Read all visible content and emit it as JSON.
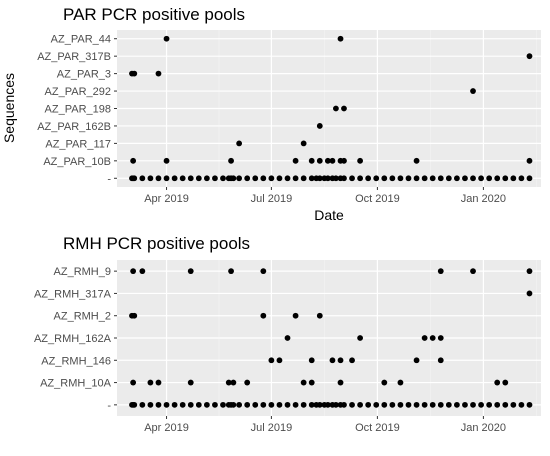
{
  "chart_data": [
    {
      "type": "scatter",
      "title": "PAR PCR positive pools",
      "xlabel": "Date",
      "ylabel": "Sequences",
      "x_ticks": [
        "Apr 2019",
        "Jul 2019",
        "Oct 2019",
        "Jan 2020"
      ],
      "x_tick_dates": [
        "2019-04-01",
        "2019-07-01",
        "2019-10-01",
        "2020-01-01"
      ],
      "xlim": [
        "2019-02-17",
        "2020-02-20"
      ],
      "categories": [
        "-",
        "AZ_PAR_10B",
        "AZ_PAR_117",
        "AZ_PAR_162B",
        "AZ_PAR_198",
        "AZ_PAR_292",
        "AZ_PAR_3",
        "AZ_PAR_317B",
        "AZ_PAR_44"
      ],
      "grid": true,
      "background": "#ebebeb",
      "point_color": "#000000",
      "series": [
        {
          "category": "-",
          "dates": [
            "2019-03-02",
            "2019-03-03",
            "2019-03-04",
            "2019-03-11",
            "2019-03-18",
            "2019-03-25",
            "2019-04-01",
            "2019-04-08",
            "2019-04-15",
            "2019-04-22",
            "2019-04-29",
            "2019-05-06",
            "2019-05-13",
            "2019-05-20",
            "2019-05-25",
            "2019-05-27",
            "2019-05-29",
            "2019-06-03",
            "2019-06-10",
            "2019-06-17",
            "2019-06-24",
            "2019-07-01",
            "2019-07-08",
            "2019-07-15",
            "2019-07-22",
            "2019-07-29",
            "2019-08-05",
            "2019-08-09",
            "2019-08-12",
            "2019-08-16",
            "2019-08-19",
            "2019-08-23",
            "2019-08-26",
            "2019-08-30",
            "2019-09-02",
            "2019-09-09",
            "2019-09-16",
            "2019-09-23",
            "2019-09-30",
            "2019-10-07",
            "2019-10-14",
            "2019-10-21",
            "2019-10-28",
            "2019-11-04",
            "2019-11-11",
            "2019-11-18",
            "2019-11-25",
            "2019-12-02",
            "2019-12-09",
            "2019-12-16",
            "2019-12-23",
            "2019-12-30",
            "2020-01-06",
            "2020-01-13",
            "2020-01-20",
            "2020-01-27",
            "2020-02-03",
            "2020-02-10"
          ]
        },
        {
          "category": "AZ_PAR_10B",
          "dates": [
            "2019-03-03",
            "2019-04-01",
            "2019-05-27",
            "2019-07-22",
            "2019-08-05",
            "2019-08-12",
            "2019-08-19",
            "2019-08-23",
            "2019-08-30",
            "2019-09-02",
            "2019-09-16",
            "2019-11-04",
            "2020-02-10"
          ]
        },
        {
          "category": "AZ_PAR_117",
          "dates": [
            "2019-06-03",
            "2019-07-29"
          ]
        },
        {
          "category": "AZ_PAR_162B",
          "dates": [
            "2019-08-12"
          ]
        },
        {
          "category": "AZ_PAR_198",
          "dates": [
            "2019-08-26",
            "2019-09-02"
          ]
        },
        {
          "category": "AZ_PAR_292",
          "dates": [
            "2019-12-23"
          ]
        },
        {
          "category": "AZ_PAR_3",
          "dates": [
            "2019-03-02",
            "2019-03-04",
            "2019-03-25"
          ]
        },
        {
          "category": "AZ_PAR_317B",
          "dates": [
            "2020-02-10"
          ]
        },
        {
          "category": "AZ_PAR_44",
          "dates": [
            "2019-04-01",
            "2019-08-30"
          ]
        }
      ]
    },
    {
      "type": "scatter",
      "title": "RMH PCR positive pools",
      "xlabel": "",
      "ylabel": "",
      "x_ticks": [
        "Apr 2019",
        "Jul 2019",
        "Oct 2019",
        "Jan 2020"
      ],
      "x_tick_dates": [
        "2019-04-01",
        "2019-07-01",
        "2019-10-01",
        "2020-01-01"
      ],
      "xlim": [
        "2019-02-17",
        "2020-02-20"
      ],
      "categories": [
        "-",
        "AZ_RMH_10A",
        "AZ_RMH_146",
        "AZ_RMH_162A",
        "AZ_RMH_2",
        "AZ_RMH_317A",
        "AZ_RMH_9"
      ],
      "grid": true,
      "background": "#ebebeb",
      "point_color": "#000000",
      "series": [
        {
          "category": "-",
          "dates": [
            "2019-03-02",
            "2019-03-03",
            "2019-03-04",
            "2019-03-11",
            "2019-03-18",
            "2019-03-25",
            "2019-04-01",
            "2019-04-08",
            "2019-04-15",
            "2019-04-22",
            "2019-04-29",
            "2019-05-06",
            "2019-05-13",
            "2019-05-20",
            "2019-05-25",
            "2019-05-27",
            "2019-05-29",
            "2019-06-03",
            "2019-06-10",
            "2019-06-17",
            "2019-06-24",
            "2019-07-01",
            "2019-07-08",
            "2019-07-15",
            "2019-07-22",
            "2019-07-29",
            "2019-08-05",
            "2019-08-09",
            "2019-08-12",
            "2019-08-16",
            "2019-08-19",
            "2019-08-23",
            "2019-08-26",
            "2019-08-30",
            "2019-09-02",
            "2019-09-09",
            "2019-09-16",
            "2019-09-23",
            "2019-09-30",
            "2019-10-07",
            "2019-10-14",
            "2019-10-21",
            "2019-10-28",
            "2019-11-04",
            "2019-11-11",
            "2019-11-18",
            "2019-11-25",
            "2019-12-02",
            "2019-12-09",
            "2019-12-16",
            "2019-12-23",
            "2019-12-30",
            "2020-01-06",
            "2020-01-13",
            "2020-01-20",
            "2020-01-27",
            "2020-02-03",
            "2020-02-10"
          ]
        },
        {
          "category": "AZ_RMH_10A",
          "dates": [
            "2019-03-03",
            "2019-03-18",
            "2019-03-25",
            "2019-04-22",
            "2019-05-25",
            "2019-05-29",
            "2019-06-10",
            "2019-07-29",
            "2019-08-05",
            "2019-08-30",
            "2019-10-07",
            "2019-10-21",
            "2020-01-13",
            "2020-01-20"
          ]
        },
        {
          "category": "AZ_RMH_146",
          "dates": [
            "2019-07-01",
            "2019-07-08",
            "2019-08-05",
            "2019-08-23",
            "2019-08-30",
            "2019-09-09",
            "2019-11-04",
            "2019-11-25"
          ]
        },
        {
          "category": "AZ_RMH_162A",
          "dates": [
            "2019-07-15",
            "2019-09-16",
            "2019-11-11",
            "2019-11-18",
            "2019-11-25"
          ]
        },
        {
          "category": "AZ_RMH_2",
          "dates": [
            "2019-03-02",
            "2019-03-04",
            "2019-06-24",
            "2019-07-22",
            "2019-08-12"
          ]
        },
        {
          "category": "AZ_RMH_317A",
          "dates": [
            "2020-02-10"
          ]
        },
        {
          "category": "AZ_RMH_9",
          "dates": [
            "2019-03-03",
            "2019-03-11",
            "2019-04-22",
            "2019-05-27",
            "2019-06-24",
            "2019-11-25",
            "2019-12-23",
            "2020-02-10"
          ]
        }
      ]
    }
  ]
}
